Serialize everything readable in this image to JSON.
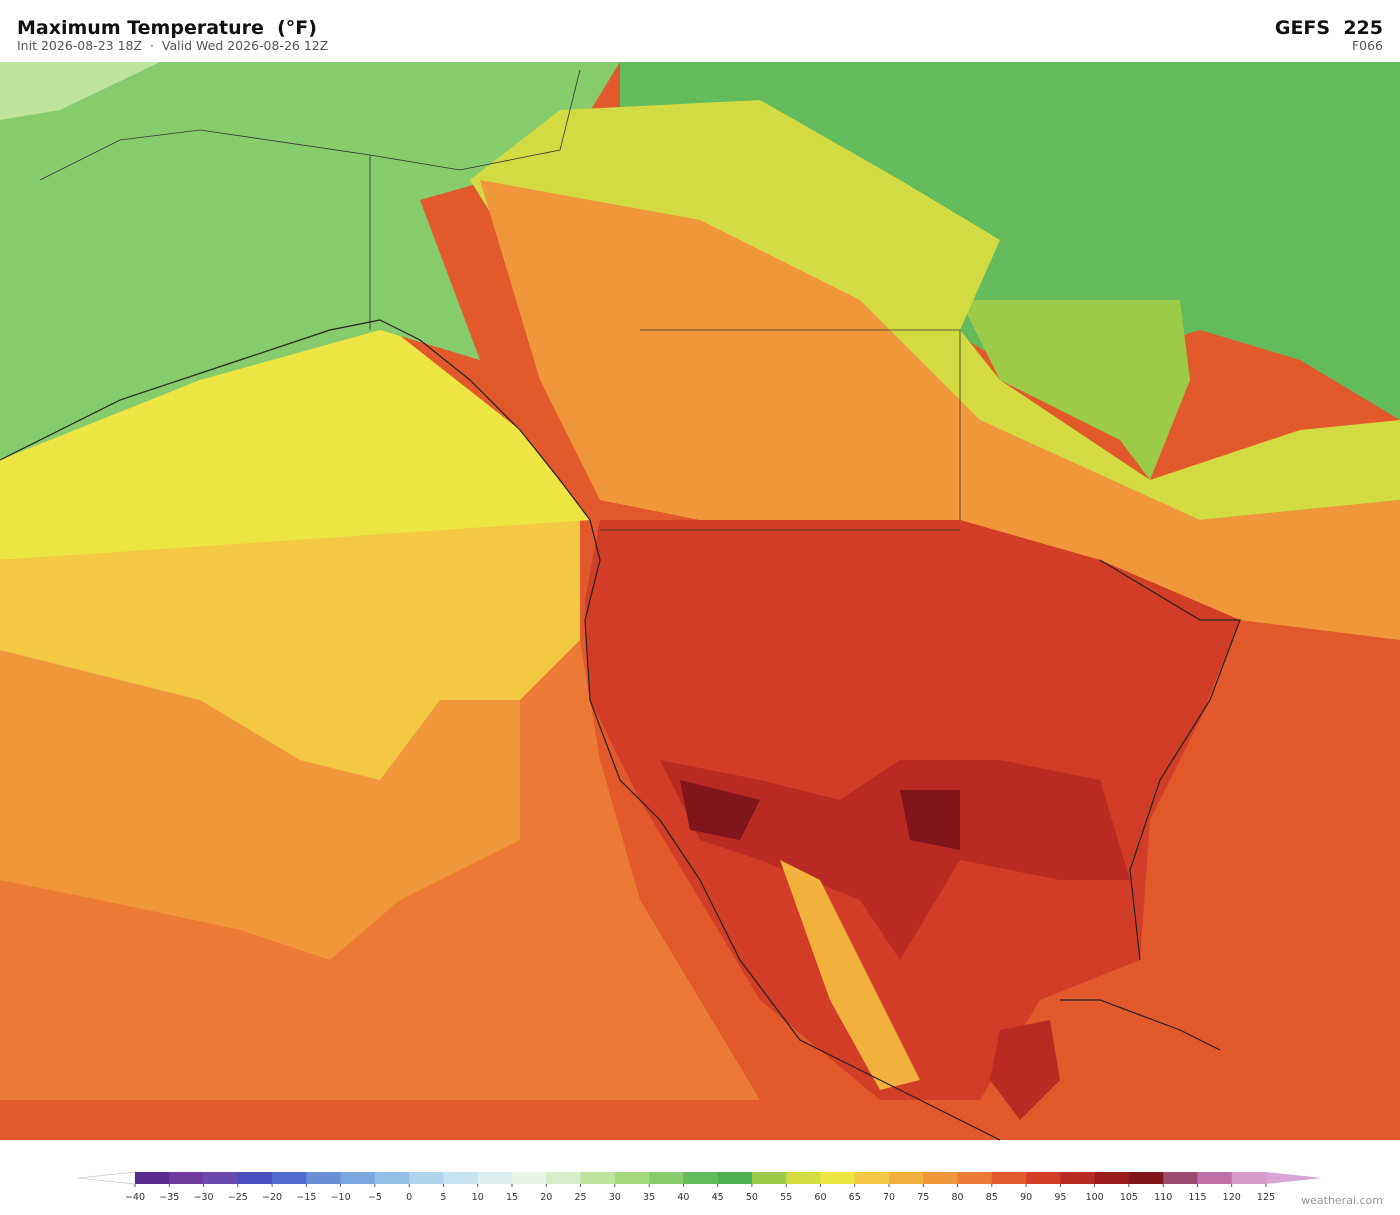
{
  "header": {
    "title": "Maximum Temperature  (°F)",
    "subtitle": "Init 2026-08-23 18Z  ·  Valid Wed 2026-08-26 12Z",
    "model": "GEFS  225",
    "forecast_hour": "F066"
  },
  "colorbar": {
    "ticks": [
      {
        "value": -40,
        "label": "−40"
      },
      {
        "value": -35,
        "label": "−35"
      },
      {
        "value": -30,
        "label": "−30"
      },
      {
        "value": -25,
        "label": "−25"
      },
      {
        "value": -20,
        "label": "−20"
      },
      {
        "value": -15,
        "label": "−15"
      },
      {
        "value": -10,
        "label": "−10"
      },
      {
        "value": -5,
        "label": "−5"
      },
      0,
      5,
      10,
      15,
      20,
      25,
      30,
      35,
      40,
      45,
      50,
      55,
      60,
      65,
      70,
      75,
      80,
      85,
      90,
      95,
      100,
      105,
      110,
      115,
      120,
      125
    ],
    "colors": [
      "#5b2a8f",
      "#6f3a9e",
      "#6a4aaf",
      "#4a4fbf",
      "#4f6bd0",
      "#6a8fd6",
      "#7aa8de",
      "#93c0e6",
      "#aed3ec",
      "#c6e3f0",
      "#dcefef",
      "#e8f5e6",
      "#d6edc8",
      "#bde39c",
      "#a3d97f",
      "#86cc6c",
      "#63bb5c",
      "#4caf50",
      "#9ccb4a",
      "#d2dc42",
      "#ece544",
      "#f3c944",
      "#f2b13d",
      "#ef973a",
      "#ea7a35",
      "#e25a2c",
      "#d13d27",
      "#b92a22",
      "#9a1d1c",
      "#80151a",
      "#9e4a6e",
      "#c070a8",
      "#d89ac8"
    ],
    "extend_colors": [
      "#ffffff",
      "#d8a4d8"
    ]
  },
  "footer": {
    "credit": "weatherai.com"
  }
}
